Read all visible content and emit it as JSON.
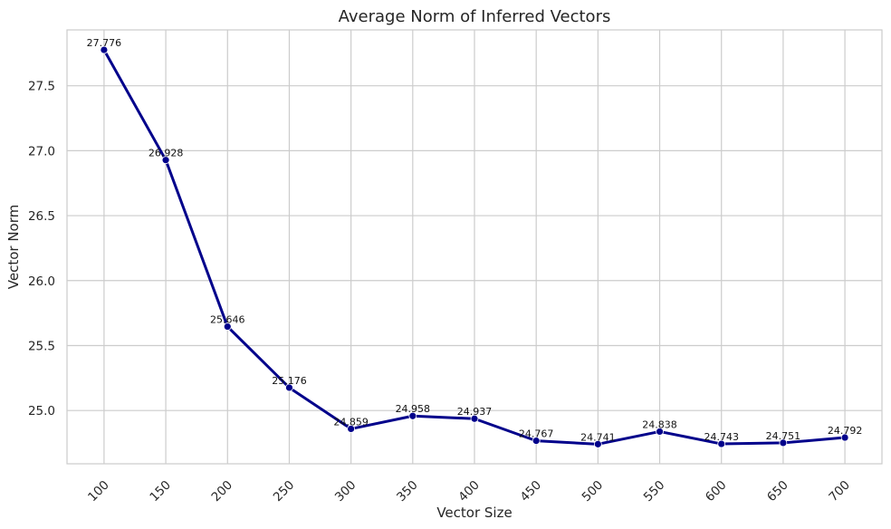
{
  "chart_data": {
    "type": "line",
    "title": "Average Norm of Inferred Vectors",
    "xlabel": "Vector Size",
    "ylabel": "Vector Norm",
    "x": [
      100,
      150,
      200,
      250,
      300,
      350,
      400,
      450,
      500,
      550,
      600,
      650,
      700
    ],
    "series": [
      {
        "values": [
          27.776,
          26.928,
          25.646,
          25.176,
          24.859,
          24.958,
          24.937,
          24.767,
          24.741,
          24.838,
          24.743,
          24.751,
          24.792
        ]
      }
    ],
    "data_labels": [
      "27.776",
      "26.928",
      "25.646",
      "25.176",
      "24.859",
      "24.958",
      "24.937",
      "24.767",
      "24.741",
      "24.838",
      "24.743",
      "24.751",
      "24.792"
    ],
    "x_ticks": [
      "100",
      "150",
      "200",
      "250",
      "300",
      "350",
      "400",
      "450",
      "500",
      "550",
      "600",
      "650",
      "700"
    ],
    "y_ticks": [
      "25.0",
      "25.5",
      "26.0",
      "26.5",
      "27.0",
      "27.5"
    ],
    "y_tick_values": [
      25.0,
      25.5,
      26.0,
      26.5,
      27.0,
      27.5
    ],
    "xlim": [
      70,
      730
    ],
    "ylim": [
      24.59,
      27.93
    ],
    "grid": true,
    "legend": "none",
    "x_tick_rotation_deg": 45,
    "colors": {
      "line": "#00008b",
      "grid": "#cccccc",
      "spine": "#cccccc",
      "text": "#262626"
    }
  }
}
